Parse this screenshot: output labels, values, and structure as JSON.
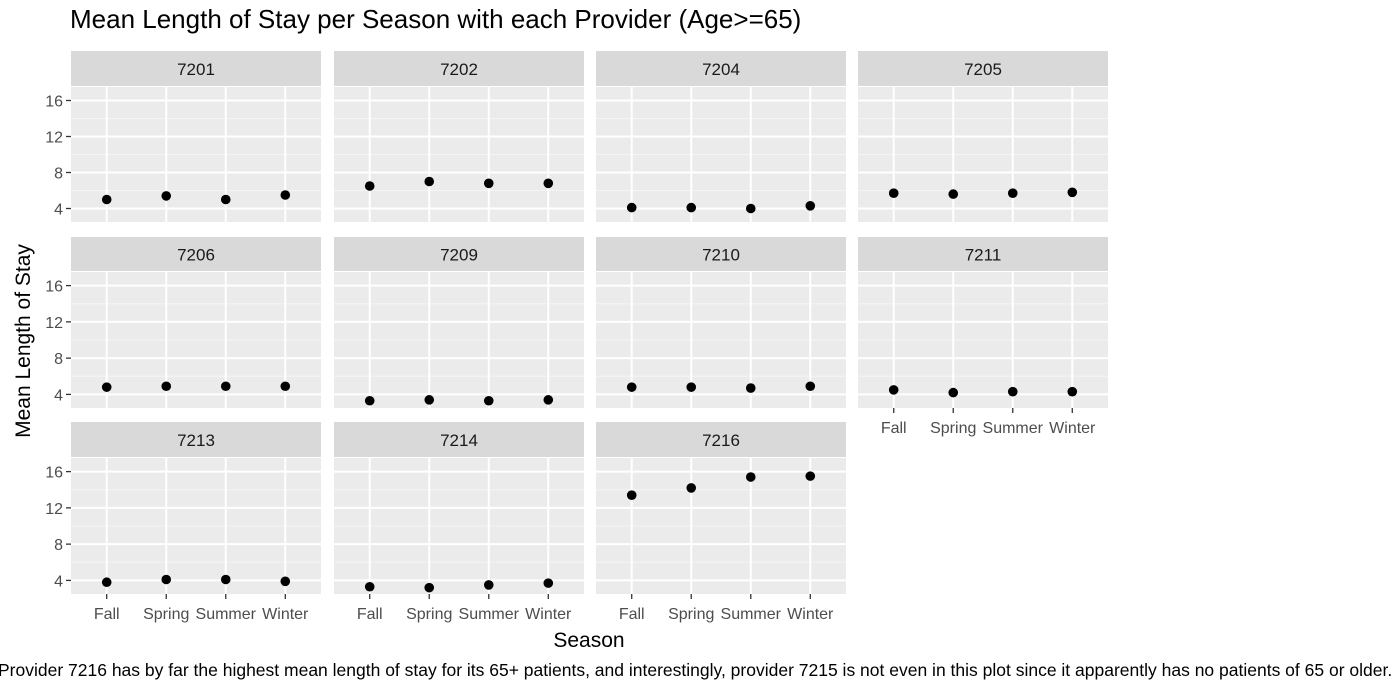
{
  "chart_data": {
    "type": "scatter",
    "title": "Mean Length of Stay per Season with each Provider (Age>=65)",
    "xlabel": "Season",
    "ylabel": "Mean Length of Stay",
    "categories": [
      "Fall",
      "Spring",
      "Summer",
      "Winter"
    ],
    "y_ticks": [
      4,
      8,
      12,
      16
    ],
    "ylim": [
      2.5,
      17.5
    ],
    "facet_layout": "4 columns, 3 rows",
    "grid": true,
    "panels": [
      {
        "provider": "7201",
        "values": [
          5.0,
          5.4,
          5.0,
          5.5
        ]
      },
      {
        "provider": "7202",
        "values": [
          6.5,
          7.0,
          6.8,
          6.8
        ]
      },
      {
        "provider": "7204",
        "values": [
          4.1,
          4.1,
          4.0,
          4.3
        ]
      },
      {
        "provider": "7205",
        "values": [
          5.7,
          5.6,
          5.7,
          5.8
        ]
      },
      {
        "provider": "7206",
        "values": [
          4.8,
          4.9,
          4.9,
          4.9
        ]
      },
      {
        "provider": "7209",
        "values": [
          3.3,
          3.4,
          3.3,
          3.4
        ]
      },
      {
        "provider": "7210",
        "values": [
          4.8,
          4.8,
          4.7,
          4.9
        ]
      },
      {
        "provider": "7211",
        "values": [
          4.5,
          4.2,
          4.3,
          4.3
        ]
      },
      {
        "provider": "7213",
        "values": [
          3.8,
          4.1,
          4.1,
          3.9
        ]
      },
      {
        "provider": "7214",
        "values": [
          3.3,
          3.2,
          3.5,
          3.7
        ]
      },
      {
        "provider": "7216",
        "values": [
          13.4,
          14.2,
          15.4,
          15.5
        ]
      }
    ]
  },
  "caption": "Provider 7216 has by far the highest mean length of stay for its 65+ patients, and interestingly, provider 7215 is not even in this plot since it apparently has no patients of 65 or older."
}
